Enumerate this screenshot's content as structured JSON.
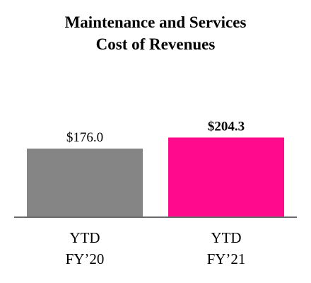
{
  "chart_data": {
    "type": "bar",
    "title_lines": [
      "Maintenance and Services",
      "Cost of Revenues"
    ],
    "categories": [
      [
        "YTD",
        "FY’20"
      ],
      [
        "YTD",
        "FY’21"
      ]
    ],
    "values": [
      176.0,
      204.3
    ],
    "value_labels": [
      "$176.0",
      "$204.3"
    ],
    "highlight_index": 1,
    "colors": [
      "#858585",
      "#ff0a8c"
    ],
    "axis_color": "#6b6b6b",
    "ylim": [
      0,
      220
    ],
    "grid": false,
    "legend": "none"
  }
}
